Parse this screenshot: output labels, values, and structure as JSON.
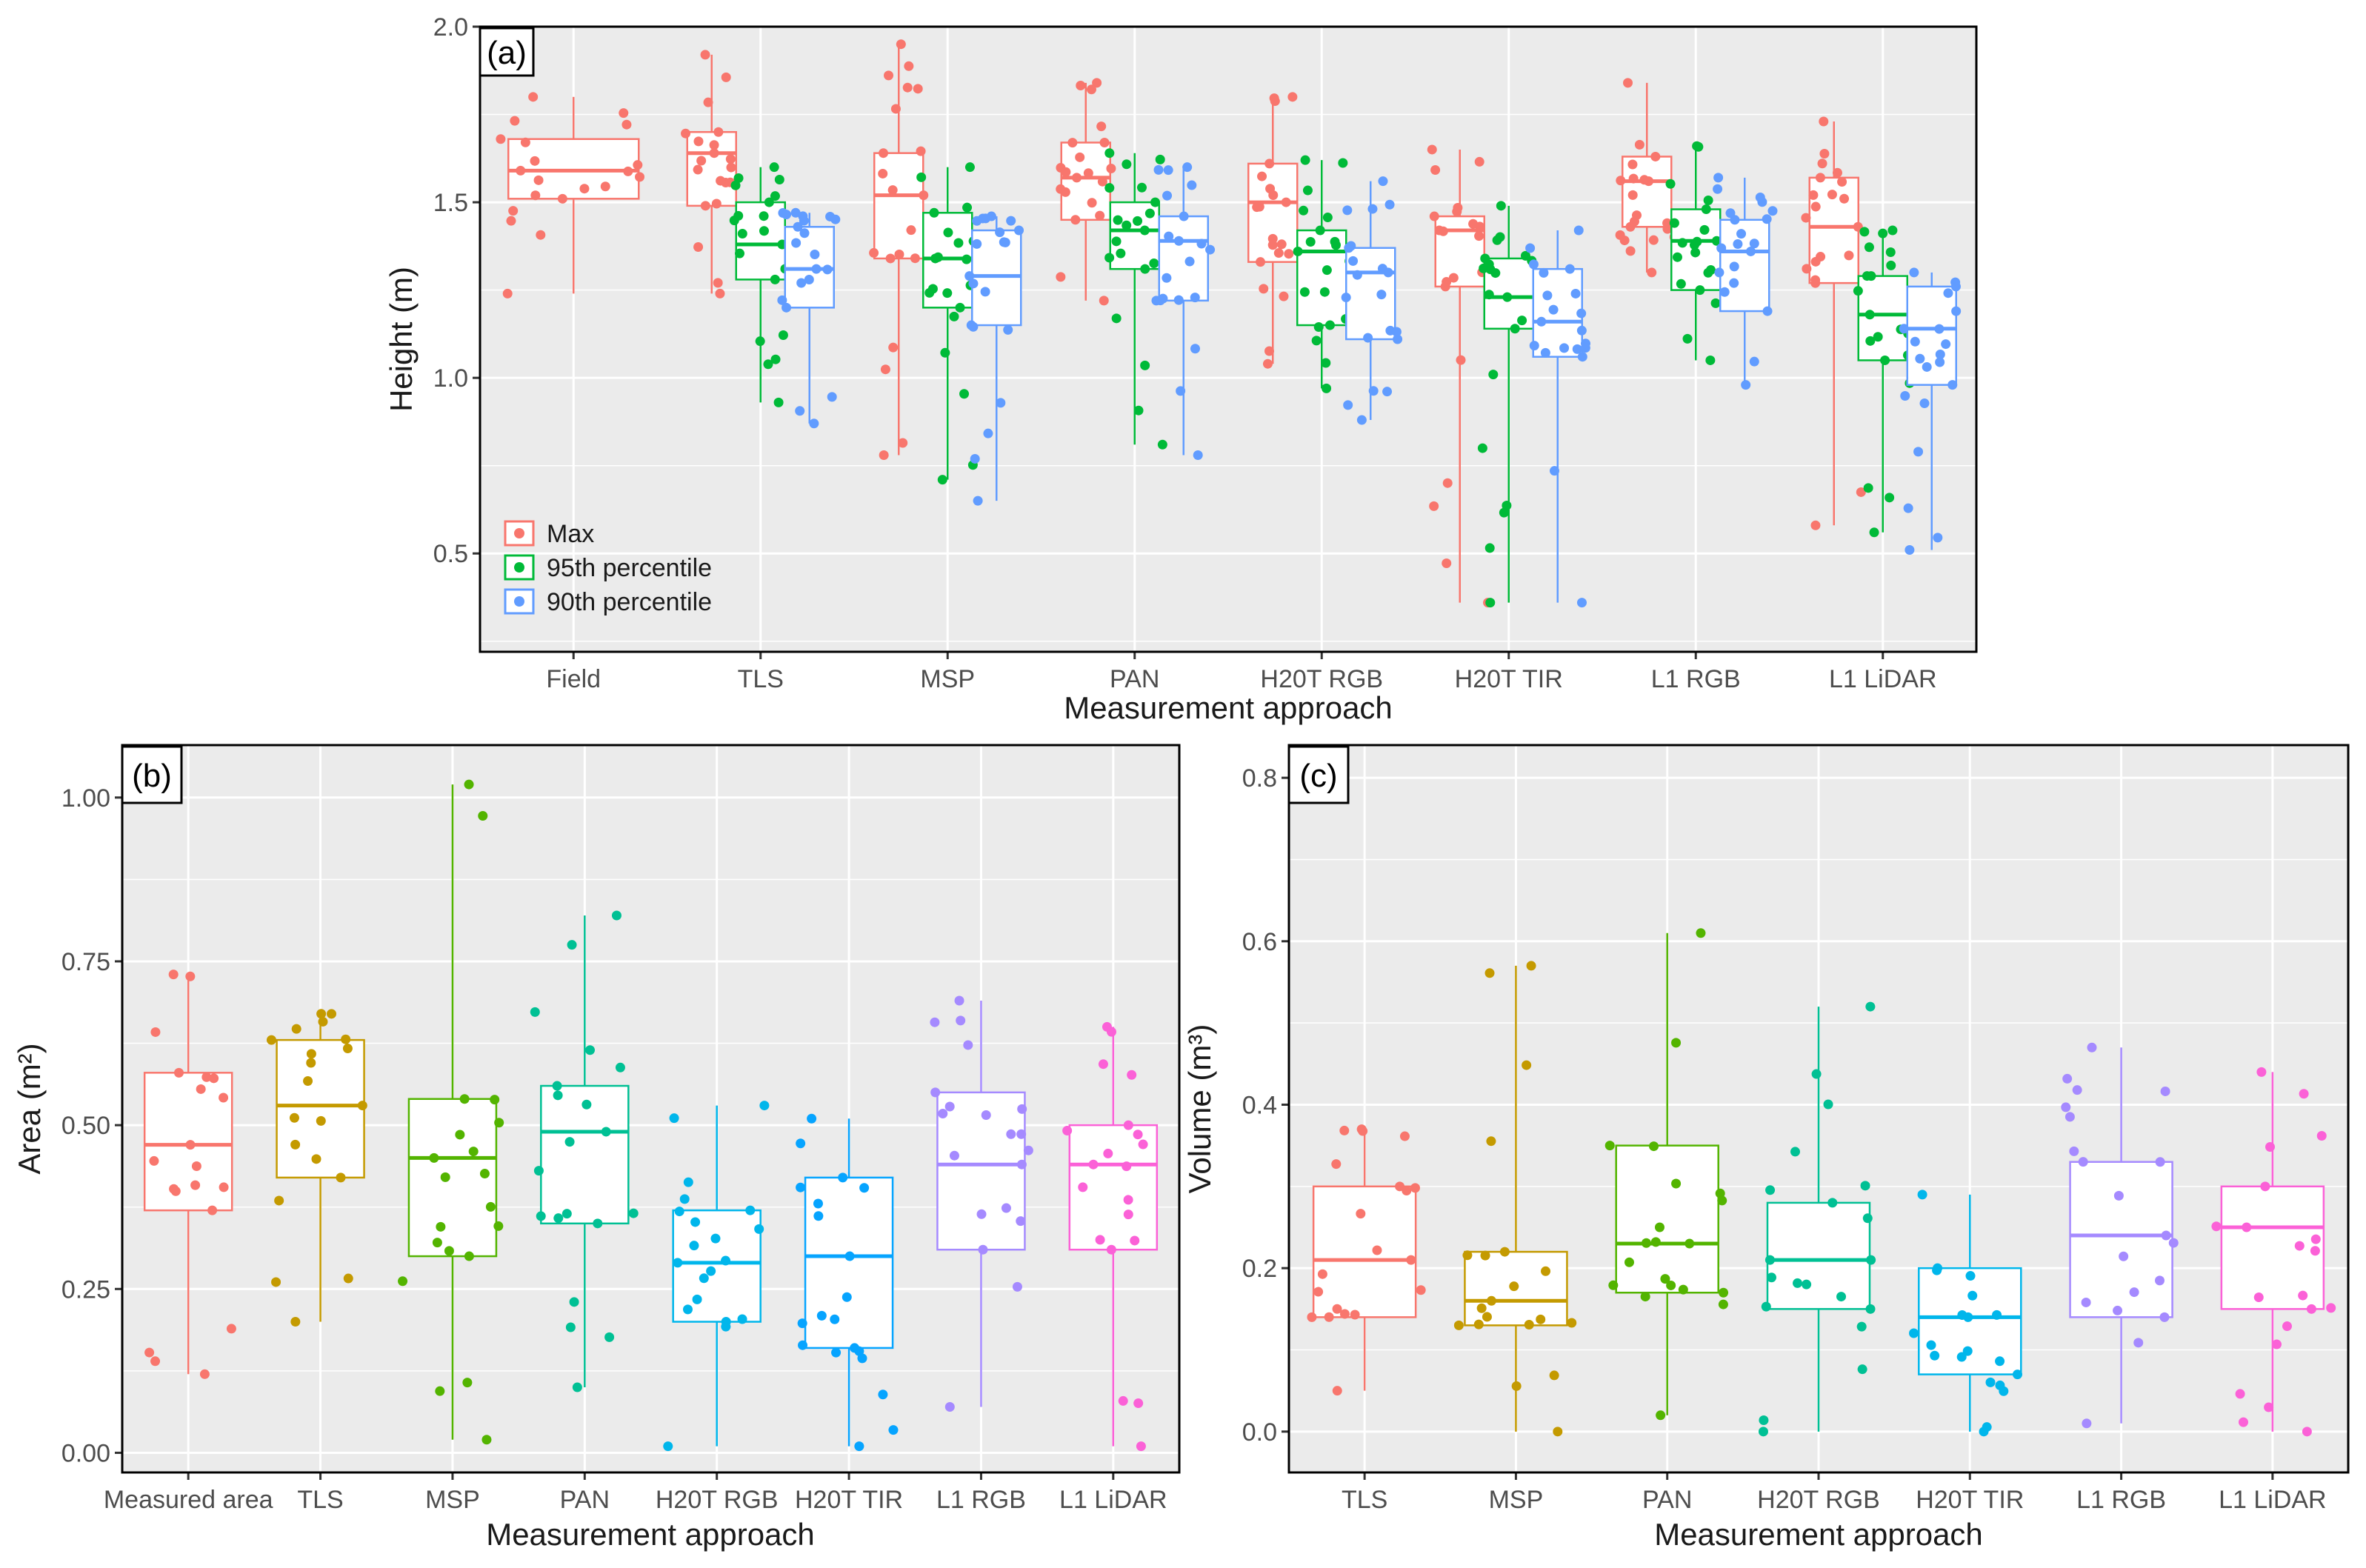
{
  "chart_data": [
    {
      "type": "box",
      "id": "a",
      "panel_tag": "(a)",
      "xlabel": "Measurement approach",
      "ylabel": "Height (m)",
      "ylim": [
        0.22,
        2.0
      ],
      "yticks": [
        "0.5",
        "1.0",
        "1.5",
        "2.0"
      ],
      "ytick_values": [
        0.5,
        1.0,
        1.5,
        2.0
      ],
      "categories": [
        "Field",
        "TLS",
        "MSP",
        "PAN",
        "H20T RGB",
        "H20T TIR",
        "L1 RGB",
        "L1 LiDAR"
      ],
      "legend": [
        {
          "name": "Max",
          "color": "#F8766D"
        },
        {
          "name": "95th percentile",
          "color": "#00BA38"
        },
        {
          "name": "90th percentile",
          "color": "#619CFF"
        }
      ],
      "series": [
        {
          "name": "Max",
          "color": "#F8766D",
          "boxes": [
            {
              "cat": "Field",
              "min": 1.24,
              "q1": 1.51,
              "median": 1.59,
              "q3": 1.68,
              "max": 1.8
            },
            {
              "cat": "TLS",
              "min": 1.24,
              "q1": 1.49,
              "median": 1.64,
              "q3": 1.7,
              "max": 1.92
            },
            {
              "cat": "MSP",
              "min": 0.78,
              "q1": 1.34,
              "median": 1.52,
              "q3": 1.64,
              "max": 1.95
            },
            {
              "cat": "PAN",
              "min": 1.22,
              "q1": 1.45,
              "median": 1.57,
              "q3": 1.67,
              "max": 1.84
            },
            {
              "cat": "H20T RGB",
              "min": 1.04,
              "q1": 1.33,
              "median": 1.5,
              "q3": 1.61,
              "max": 1.8
            },
            {
              "cat": "H20T TIR",
              "min": 0.36,
              "q1": 1.26,
              "median": 1.42,
              "q3": 1.46,
              "max": 1.65
            },
            {
              "cat": "L1 RGB",
              "min": 1.3,
              "q1": 1.43,
              "median": 1.56,
              "q3": 1.63,
              "max": 1.84
            },
            {
              "cat": "L1 LiDAR",
              "min": 0.58,
              "q1": 1.27,
              "median": 1.43,
              "q3": 1.57,
              "max": 1.73
            }
          ]
        },
        {
          "name": "95th percentile",
          "color": "#00BA38",
          "boxes": [
            {
              "cat": "TLS",
              "min": 0.93,
              "q1": 1.28,
              "median": 1.38,
              "q3": 1.5,
              "max": 1.6
            },
            {
              "cat": "MSP",
              "min": 0.71,
              "q1": 1.2,
              "median": 1.34,
              "q3": 1.47,
              "max": 1.6
            },
            {
              "cat": "PAN",
              "min": 0.81,
              "q1": 1.31,
              "median": 1.42,
              "q3": 1.5,
              "max": 1.64
            },
            {
              "cat": "H20T RGB",
              "min": 0.97,
              "q1": 1.15,
              "median": 1.36,
              "q3": 1.42,
              "max": 1.62
            },
            {
              "cat": "H20T TIR",
              "min": 0.36,
              "q1": 1.14,
              "median": 1.23,
              "q3": 1.34,
              "max": 1.49
            },
            {
              "cat": "L1 RGB",
              "min": 1.05,
              "q1": 1.25,
              "median": 1.39,
              "q3": 1.48,
              "max": 1.66
            },
            {
              "cat": "L1 LiDAR",
              "min": 0.56,
              "q1": 1.05,
              "median": 1.18,
              "q3": 1.29,
              "max": 1.42
            }
          ]
        },
        {
          "name": "90th percentile",
          "color": "#619CFF",
          "boxes": [
            {
              "cat": "TLS",
              "min": 0.87,
              "q1": 1.2,
              "median": 1.31,
              "q3": 1.43,
              "max": 1.47
            },
            {
              "cat": "MSP",
              "min": 0.65,
              "q1": 1.15,
              "median": 1.29,
              "q3": 1.42,
              "max": 1.46
            },
            {
              "cat": "PAN",
              "min": 0.78,
              "q1": 1.22,
              "median": 1.39,
              "q3": 1.46,
              "max": 1.6
            },
            {
              "cat": "H20T RGB",
              "min": 0.88,
              "q1": 1.11,
              "median": 1.3,
              "q3": 1.37,
              "max": 1.56
            },
            {
              "cat": "H20T TIR",
              "min": 0.36,
              "q1": 1.06,
              "median": 1.16,
              "q3": 1.31,
              "max": 1.42
            },
            {
              "cat": "L1 RGB",
              "min": 0.98,
              "q1": 1.19,
              "median": 1.36,
              "q3": 1.45,
              "max": 1.57
            },
            {
              "cat": "L1 LiDAR",
              "min": 0.51,
              "q1": 0.98,
              "median": 1.14,
              "q3": 1.26,
              "max": 1.3
            }
          ]
        }
      ]
    },
    {
      "type": "box",
      "id": "b",
      "panel_tag": "(b)",
      "xlabel": "Measurement approach",
      "ylabel": "Area (m²)",
      "ylim": [
        -0.03,
        1.08
      ],
      "yticks": [
        "0.00",
        "0.25",
        "0.50",
        "0.75",
        "1.00"
      ],
      "ytick_values": [
        0,
        0.25,
        0.5,
        0.75,
        1.0
      ],
      "categories": [
        "Measured area",
        "TLS",
        "MSP",
        "PAN",
        "H20T RGB",
        "H20T TIR",
        "L1 RGB",
        "L1 LiDAR"
      ],
      "series": [
        {
          "name": "Area",
          "boxes": [
            {
              "cat": "Measured area",
              "color": "#F8766D",
              "min": 0.12,
              "q1": 0.37,
              "median": 0.47,
              "q3": 0.58,
              "max": 0.73
            },
            {
              "cat": "TLS",
              "color": "#C49A00",
              "min": 0.2,
              "q1": 0.42,
              "median": 0.53,
              "q3": 0.63,
              "max": 0.67
            },
            {
              "cat": "MSP",
              "color": "#53B400",
              "min": 0.02,
              "q1": 0.3,
              "median": 0.45,
              "q3": 0.54,
              "max": 1.02
            },
            {
              "cat": "PAN",
              "color": "#00C094",
              "min": 0.1,
              "q1": 0.35,
              "median": 0.49,
              "q3": 0.56,
              "max": 0.82
            },
            {
              "cat": "H20T RGB",
              "color": "#00B6EB",
              "min": 0.01,
              "q1": 0.2,
              "median": 0.29,
              "q3": 0.37,
              "max": 0.53
            },
            {
              "cat": "H20T TIR",
              "color": "#06A4FF",
              "min": 0.01,
              "q1": 0.16,
              "median": 0.3,
              "q3": 0.42,
              "max": 0.51
            },
            {
              "cat": "L1 RGB",
              "color": "#A58AFF",
              "min": 0.07,
              "q1": 0.31,
              "median": 0.44,
              "q3": 0.55,
              "max": 0.69
            },
            {
              "cat": "L1 LiDAR",
              "color": "#FB61D7",
              "min": 0.01,
              "q1": 0.31,
              "median": 0.44,
              "q3": 0.5,
              "max": 0.65
            }
          ]
        }
      ]
    },
    {
      "type": "box",
      "id": "c",
      "panel_tag": "(c)",
      "xlabel": "Measurement approach",
      "ylabel": "Volume (m³)",
      "ylim": [
        -0.05,
        0.84
      ],
      "yticks": [
        "0.0",
        "0.2",
        "0.4",
        "0.6",
        "0.8"
      ],
      "ytick_values": [
        0,
        0.2,
        0.4,
        0.6,
        0.8
      ],
      "categories": [
        "TLS",
        "MSP",
        "PAN",
        "H20T RGB",
        "H20T TIR",
        "L1 RGB",
        "L1 LiDAR"
      ],
      "series": [
        {
          "name": "Volume",
          "boxes": [
            {
              "cat": "TLS",
              "color": "#F8766D",
              "min": 0.05,
              "q1": 0.14,
              "median": 0.21,
              "q3": 0.3,
              "max": 0.37
            },
            {
              "cat": "MSP",
              "color": "#C49A00",
              "min": 0.0,
              "q1": 0.13,
              "median": 0.16,
              "q3": 0.22,
              "max": 0.57
            },
            {
              "cat": "PAN",
              "color": "#53B400",
              "min": 0.02,
              "q1": 0.17,
              "median": 0.23,
              "q3": 0.35,
              "max": 0.61
            },
            {
              "cat": "H20T RGB",
              "color": "#00C094",
              "min": 0.0,
              "q1": 0.15,
              "median": 0.21,
              "q3": 0.28,
              "max": 0.52
            },
            {
              "cat": "H20T TIR",
              "color": "#00B6EB",
              "min": 0.0,
              "q1": 0.07,
              "median": 0.14,
              "q3": 0.2,
              "max": 0.29
            },
            {
              "cat": "L1 RGB",
              "color": "#A58AFF",
              "min": 0.01,
              "q1": 0.14,
              "median": 0.24,
              "q3": 0.33,
              "max": 0.47
            },
            {
              "cat": "L1 LiDAR",
              "color": "#FB61D7",
              "min": 0.0,
              "q1": 0.15,
              "median": 0.25,
              "q3": 0.3,
              "max": 0.44
            }
          ]
        }
      ]
    }
  ]
}
